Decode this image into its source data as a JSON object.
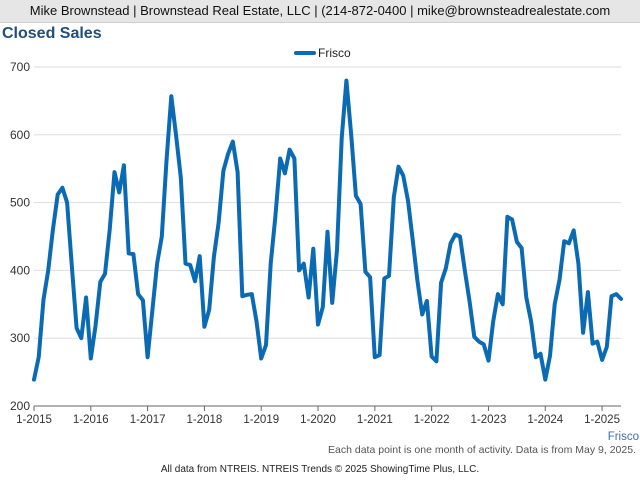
{
  "header": {
    "contact": "Mike Brownstead | Brownstead Real Estate, LLC | (214-872-0400 | mike@brownsteadrealestate.com"
  },
  "footer": {
    "note": "Each data point is one month of activity. Data is from May 9, 2025.",
    "source": "All data from NTREIS. NTREIS Trends © 2025 ShowingTime Plus, LLC."
  },
  "colors": {
    "series": "#0a6ab3",
    "grid": "#dddddd",
    "axis": "#666666",
    "title": "#1f4e79"
  },
  "chart_data": {
    "type": "line",
    "title": "Closed Sales",
    "xlabel": "Frisco",
    "ylabel": "",
    "ylim": [
      200,
      700
    ],
    "yticks": [
      200,
      300,
      400,
      500,
      600,
      700
    ],
    "xlim": [
      "2015-01",
      "2025-05"
    ],
    "xticks": [
      "1-2015",
      "1-2016",
      "1-2017",
      "1-2018",
      "1-2019",
      "1-2020",
      "1-2021",
      "1-2022",
      "1-2023",
      "1-2024",
      "1-2025"
    ],
    "grid": true,
    "legend": "top-center",
    "series": [
      {
        "name": "Frisco",
        "color": "#0a6ab3",
        "x": [
          "2015-01",
          "2015-02",
          "2015-03",
          "2015-04",
          "2015-05",
          "2015-06",
          "2015-07",
          "2015-08",
          "2015-09",
          "2015-10",
          "2015-11",
          "2015-12",
          "2016-01",
          "2016-02",
          "2016-03",
          "2016-04",
          "2016-05",
          "2016-06",
          "2016-07",
          "2016-08",
          "2016-09",
          "2016-10",
          "2016-11",
          "2016-12",
          "2017-01",
          "2017-02",
          "2017-03",
          "2017-04",
          "2017-05",
          "2017-06",
          "2017-07",
          "2017-08",
          "2017-09",
          "2017-10",
          "2017-11",
          "2017-12",
          "2018-01",
          "2018-02",
          "2018-03",
          "2018-04",
          "2018-05",
          "2018-06",
          "2018-07",
          "2018-08",
          "2018-09",
          "2018-10",
          "2018-11",
          "2018-12",
          "2019-01",
          "2019-02",
          "2019-03",
          "2019-04",
          "2019-05",
          "2019-06",
          "2019-07",
          "2019-08",
          "2019-09",
          "2019-10",
          "2019-11",
          "2019-12",
          "2020-01",
          "2020-02",
          "2020-03",
          "2020-04",
          "2020-05",
          "2020-06",
          "2020-07",
          "2020-08",
          "2020-09",
          "2020-10",
          "2020-11",
          "2020-12",
          "2021-01",
          "2021-02",
          "2021-03",
          "2021-04",
          "2021-05",
          "2021-06",
          "2021-07",
          "2021-08",
          "2021-09",
          "2021-10",
          "2021-11",
          "2021-12",
          "2022-01",
          "2022-02",
          "2022-03",
          "2022-04",
          "2022-05",
          "2022-06",
          "2022-07",
          "2022-08",
          "2022-09",
          "2022-10",
          "2022-11",
          "2022-12",
          "2023-01",
          "2023-02",
          "2023-03",
          "2023-04",
          "2023-05",
          "2023-06",
          "2023-07",
          "2023-08",
          "2023-09",
          "2023-10",
          "2023-11",
          "2023-12",
          "2024-01",
          "2024-02",
          "2024-03",
          "2024-04",
          "2024-05",
          "2024-06",
          "2024-07",
          "2024-08",
          "2024-09",
          "2024-10",
          "2024-11",
          "2024-12",
          "2025-01",
          "2025-02",
          "2025-03",
          "2025-04",
          "2025-05"
        ],
        "values": [
          239,
          272,
          357,
          400,
          460,
          512,
          522,
          500,
          405,
          315,
          300,
          360,
          270,
          318,
          383,
          395,
          460,
          545,
          515,
          555,
          425,
          424,
          365,
          356,
          272,
          340,
          410,
          450,
          562,
          657,
          600,
          537,
          410,
          408,
          384,
          421,
          317,
          342,
          420,
          470,
          547,
          572,
          590,
          545,
          362,
          364,
          365,
          325,
          270,
          290,
          410,
          480,
          565,
          543,
          578,
          565,
          400,
          410,
          360,
          432,
          320,
          346,
          457,
          352,
          430,
          595,
          680,
          600,
          510,
          498,
          398,
          390,
          272,
          275,
          388,
          392,
          508,
          553,
          540,
          503,
          445,
          385,
          335,
          355,
          273,
          266,
          382,
          403,
          440,
          453,
          450,
          400,
          355,
          302,
          295,
          291,
          267,
          325,
          365,
          350,
          479,
          475,
          442,
          433,
          360,
          325,
          272,
          277,
          239,
          274,
          350,
          386,
          443,
          440,
          459,
          410,
          308,
          368,
          292,
          295,
          268,
          287,
          362,
          365,
          358
        ]
      }
    ]
  }
}
